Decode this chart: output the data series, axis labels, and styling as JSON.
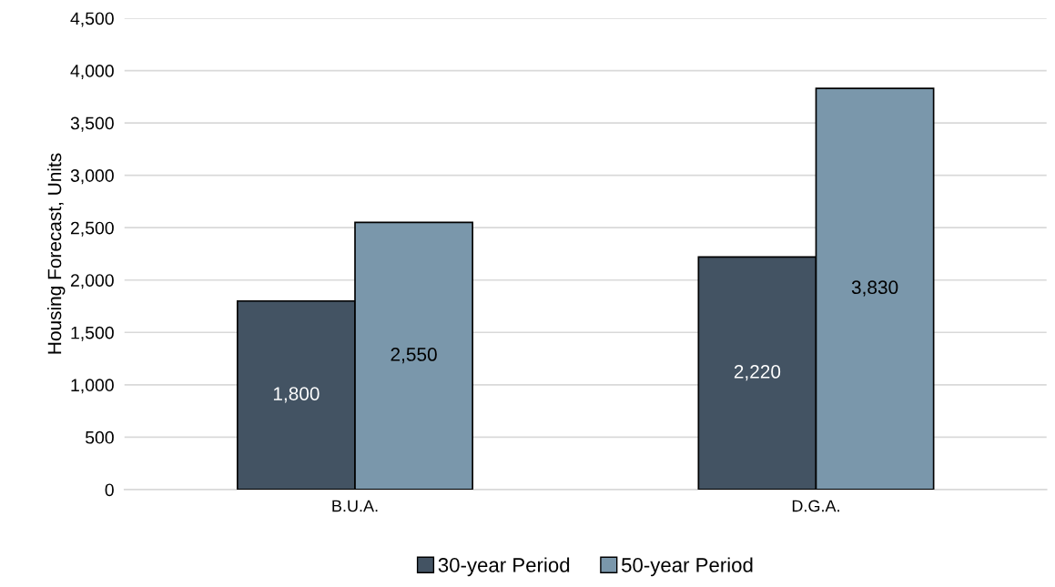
{
  "chart_data": {
    "type": "bar",
    "ylabel": "Housing Forecast, Units",
    "categories": [
      "B.U.A.",
      "D.G.A."
    ],
    "series": [
      {
        "name": "30-year Period",
        "color": "#435363",
        "values": [
          1800,
          2220
        ],
        "value_labels": [
          "1,800",
          "2,220"
        ]
      },
      {
        "name": "50-year Period",
        "color": "#7a97ab",
        "values": [
          2550,
          3830
        ],
        "value_labels": [
          "2,550",
          "3,830"
        ]
      }
    ],
    "ylim": [
      0,
      4500
    ],
    "yticks": [
      {
        "value": 0,
        "label": "0"
      },
      {
        "value": 500,
        "label": "500"
      },
      {
        "value": 1000,
        "label": "1,000"
      },
      {
        "value": 1500,
        "label": "1,500"
      },
      {
        "value": 2000,
        "label": "2,000"
      },
      {
        "value": 2500,
        "label": "2,500"
      },
      {
        "value": 3000,
        "label": "3,000"
      },
      {
        "value": 3500,
        "label": "3,500"
      },
      {
        "value": 4000,
        "label": "4,000"
      },
      {
        "value": 4500,
        "label": "4,500"
      }
    ],
    "grid": "y",
    "legend": "bottom"
  }
}
